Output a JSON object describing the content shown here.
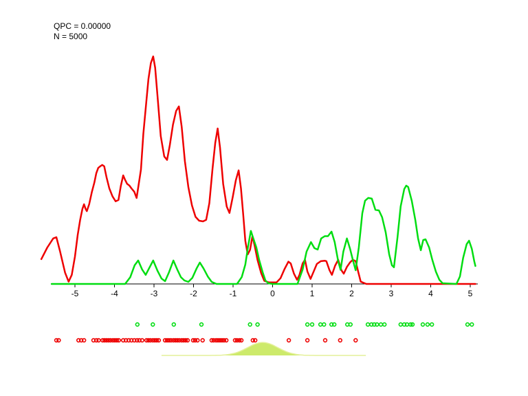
{
  "annotation": {
    "line1": "QPC = 0.00000",
    "line2": "N = 5000"
  },
  "colors": {
    "class1_red": "#ee0000",
    "class2_green": "#00dd11",
    "kernel_fill": "#cdea6b",
    "kernel_line": "#e4f099",
    "axis": "#000000",
    "text": "#000000",
    "background": "#ffffff"
  },
  "chart_data": {
    "type": "line",
    "title": "",
    "xlabel": "",
    "ylabel": "",
    "x_ticks": [
      -5,
      -4,
      -3,
      -2,
      -1,
      0,
      1,
      2,
      3,
      4,
      5
    ],
    "x_range": [
      -5.85,
      5.2
    ],
    "y_normalized": "curve heights are fractions of the tallest red peak",
    "grid": false,
    "legend": "none",
    "series": [
      {
        "name": "class1-red-density",
        "color_key": "class1_red",
        "points": [
          [
            -5.85,
            0.109
          ],
          [
            -5.7,
            0.16
          ],
          [
            -5.55,
            0.2
          ],
          [
            -5.47,
            0.205
          ],
          [
            -5.38,
            0.145
          ],
          [
            -5.25,
            0.05
          ],
          [
            -5.16,
            0.01
          ],
          [
            -5.08,
            0.04
          ],
          [
            -5.0,
            0.12
          ],
          [
            -4.93,
            0.215
          ],
          [
            -4.87,
            0.28
          ],
          [
            -4.81,
            0.33
          ],
          [
            -4.77,
            0.35
          ],
          [
            -4.73,
            0.33
          ],
          [
            -4.7,
            0.32
          ],
          [
            -4.64,
            0.35
          ],
          [
            -4.57,
            0.405
          ],
          [
            -4.51,
            0.445
          ],
          [
            -4.46,
            0.487
          ],
          [
            -4.41,
            0.51
          ],
          [
            -4.36,
            0.517
          ],
          [
            -4.31,
            0.523
          ],
          [
            -4.26,
            0.517
          ],
          [
            -4.2,
            0.468
          ],
          [
            -4.13,
            0.42
          ],
          [
            -4.05,
            0.385
          ],
          [
            -3.97,
            0.363
          ],
          [
            -3.9,
            0.369
          ],
          [
            -3.84,
            0.43
          ],
          [
            -3.78,
            0.477
          ],
          [
            -3.73,
            0.457
          ],
          [
            -3.68,
            0.44
          ],
          [
            -3.62,
            0.432
          ],
          [
            -3.57,
            0.42
          ],
          [
            -3.5,
            0.405
          ],
          [
            -3.44,
            0.378
          ],
          [
            -3.39,
            0.435
          ],
          [
            -3.33,
            0.502
          ],
          [
            -3.27,
            0.66
          ],
          [
            -3.2,
            0.79
          ],
          [
            -3.14,
            0.9
          ],
          [
            -3.08,
            0.97
          ],
          [
            -3.02,
            1.0
          ],
          [
            -2.97,
            0.95
          ],
          [
            -2.9,
            0.8
          ],
          [
            -2.83,
            0.65
          ],
          [
            -2.74,
            0.56
          ],
          [
            -2.67,
            0.545
          ],
          [
            -2.6,
            0.61
          ],
          [
            -2.52,
            0.7
          ],
          [
            -2.44,
            0.76
          ],
          [
            -2.37,
            0.78
          ],
          [
            -2.3,
            0.69
          ],
          [
            -2.22,
            0.54
          ],
          [
            -2.13,
            0.425
          ],
          [
            -2.04,
            0.345
          ],
          [
            -1.95,
            0.295
          ],
          [
            -1.86,
            0.278
          ],
          [
            -1.76,
            0.275
          ],
          [
            -1.68,
            0.282
          ],
          [
            -1.6,
            0.355
          ],
          [
            -1.52,
            0.505
          ],
          [
            -1.45,
            0.62
          ],
          [
            -1.39,
            0.683
          ],
          [
            -1.33,
            0.6
          ],
          [
            -1.25,
            0.44
          ],
          [
            -1.16,
            0.34
          ],
          [
            -1.09,
            0.312
          ],
          [
            -1.01,
            0.38
          ],
          [
            -0.93,
            0.455
          ],
          [
            -0.86,
            0.499
          ],
          [
            -0.8,
            0.42
          ],
          [
            -0.74,
            0.3
          ],
          [
            -0.69,
            0.19
          ],
          [
            -0.63,
            0.13
          ],
          [
            -0.57,
            0.15
          ],
          [
            -0.51,
            0.21
          ],
          [
            -0.45,
            0.165
          ],
          [
            -0.38,
            0.105
          ],
          [
            -0.29,
            0.048
          ],
          [
            -0.21,
            0.014
          ],
          [
            -0.1,
            0.007
          ],
          [
            0.1,
            0.007
          ],
          [
            0.2,
            0.025
          ],
          [
            0.3,
            0.065
          ],
          [
            0.4,
            0.098
          ],
          [
            0.46,
            0.09
          ],
          [
            0.54,
            0.045
          ],
          [
            0.62,
            0.018
          ],
          [
            0.68,
            0.04
          ],
          [
            0.76,
            0.09
          ],
          [
            0.82,
            0.106
          ],
          [
            0.88,
            0.055
          ],
          [
            0.96,
            0.022
          ],
          [
            1.04,
            0.055
          ],
          [
            1.12,
            0.088
          ],
          [
            1.22,
            0.1
          ],
          [
            1.32,
            0.102
          ],
          [
            1.36,
            0.1
          ],
          [
            1.44,
            0.06
          ],
          [
            1.5,
            0.04
          ],
          [
            1.58,
            0.08
          ],
          [
            1.66,
            0.106
          ],
          [
            1.74,
            0.06
          ],
          [
            1.8,
            0.045
          ],
          [
            1.88,
            0.075
          ],
          [
            1.96,
            0.095
          ],
          [
            2.03,
            0.106
          ],
          [
            2.1,
            0.1
          ],
          [
            2.17,
            0.05
          ],
          [
            2.23,
            0.01
          ],
          [
            2.37,
            0.0
          ],
          [
            5.13,
            0.0
          ]
        ]
      },
      {
        "name": "class2-green-density",
        "color_key": "class2_green",
        "points": [
          [
            -5.59,
            0.0
          ],
          [
            -3.73,
            0.0
          ],
          [
            -3.6,
            0.03
          ],
          [
            -3.49,
            0.082
          ],
          [
            -3.4,
            0.103
          ],
          [
            -3.3,
            0.063
          ],
          [
            -3.21,
            0.04
          ],
          [
            -3.12,
            0.07
          ],
          [
            -3.02,
            0.103
          ],
          [
            -2.91,
            0.057
          ],
          [
            -2.81,
            0.024
          ],
          [
            -2.72,
            0.012
          ],
          [
            -2.62,
            0.051
          ],
          [
            -2.51,
            0.103
          ],
          [
            -2.41,
            0.063
          ],
          [
            -2.32,
            0.03
          ],
          [
            -2.23,
            0.015
          ],
          [
            -2.13,
            0.009
          ],
          [
            -2.03,
            0.027
          ],
          [
            -1.92,
            0.069
          ],
          [
            -1.84,
            0.094
          ],
          [
            -1.75,
            0.069
          ],
          [
            -1.64,
            0.033
          ],
          [
            -1.54,
            0.009
          ],
          [
            -1.42,
            0.0
          ],
          [
            -0.9,
            0.0
          ],
          [
            -0.78,
            0.03
          ],
          [
            -0.69,
            0.085
          ],
          [
            -0.62,
            0.166
          ],
          [
            -0.55,
            0.233
          ],
          [
            -0.48,
            0.196
          ],
          [
            -0.41,
            0.16
          ],
          [
            -0.34,
            0.106
          ],
          [
            -0.25,
            0.051
          ],
          [
            -0.18,
            0.015
          ],
          [
            -0.11,
            0.003
          ],
          [
            0.0,
            0.0
          ],
          [
            0.63,
            0.0
          ],
          [
            0.76,
            0.063
          ],
          [
            0.86,
            0.142
          ],
          [
            0.97,
            0.184
          ],
          [
            1.06,
            0.157
          ],
          [
            1.14,
            0.151
          ],
          [
            1.23,
            0.2
          ],
          [
            1.32,
            0.21
          ],
          [
            1.4,
            0.21
          ],
          [
            1.49,
            0.23
          ],
          [
            1.57,
            0.184
          ],
          [
            1.66,
            0.1
          ],
          [
            1.72,
            0.062
          ],
          [
            1.79,
            0.142
          ],
          [
            1.88,
            0.2
          ],
          [
            1.96,
            0.154
          ],
          [
            2.03,
            0.106
          ],
          [
            2.1,
            0.06
          ],
          [
            2.18,
            0.16
          ],
          [
            2.27,
            0.311
          ],
          [
            2.34,
            0.366
          ],
          [
            2.42,
            0.378
          ],
          [
            2.51,
            0.375
          ],
          [
            2.6,
            0.326
          ],
          [
            2.69,
            0.323
          ],
          [
            2.77,
            0.293
          ],
          [
            2.86,
            0.227
          ],
          [
            2.95,
            0.13
          ],
          [
            3.02,
            0.082
          ],
          [
            3.07,
            0.073
          ],
          [
            3.16,
            0.205
          ],
          [
            3.24,
            0.341
          ],
          [
            3.33,
            0.417
          ],
          [
            3.38,
            0.432
          ],
          [
            3.43,
            0.426
          ],
          [
            3.52,
            0.366
          ],
          [
            3.61,
            0.281
          ],
          [
            3.68,
            0.2
          ],
          [
            3.75,
            0.148
          ],
          [
            3.81,
            0.193
          ],
          [
            3.87,
            0.196
          ],
          [
            3.96,
            0.16
          ],
          [
            4.04,
            0.106
          ],
          [
            4.13,
            0.054
          ],
          [
            4.22,
            0.018
          ],
          [
            4.3,
            0.003
          ],
          [
            4.65,
            0.0
          ],
          [
            4.74,
            0.033
          ],
          [
            4.82,
            0.115
          ],
          [
            4.91,
            0.175
          ],
          [
            4.97,
            0.19
          ],
          [
            5.04,
            0.154
          ],
          [
            5.1,
            0.1
          ],
          [
            5.13,
            0.079
          ]
        ]
      }
    ],
    "rug_points": {
      "class2_green_x": [
        -3.42,
        -3.03,
        -2.5,
        -1.8,
        -0.57,
        -0.38,
        0.88,
        1.0,
        1.21,
        1.3,
        1.49,
        1.56,
        1.89,
        1.97,
        2.41,
        2.5,
        2.57,
        2.64,
        2.74,
        2.83,
        3.24,
        3.33,
        3.4,
        3.49,
        3.54,
        3.8,
        3.92,
        4.03,
        4.93,
        5.04
      ],
      "class1_red_x": [
        -5.47,
        -5.41,
        -4.91,
        -4.84,
        -4.77,
        -4.53,
        -4.46,
        -4.4,
        -4.3,
        -4.25,
        -4.2,
        -4.15,
        -4.1,
        -4.04,
        -3.99,
        -3.94,
        -3.89,
        -3.78,
        -3.71,
        -3.64,
        -3.57,
        -3.5,
        -3.43,
        -3.37,
        -3.3,
        -3.19,
        -3.14,
        -3.09,
        -3.03,
        -2.98,
        -2.93,
        -2.88,
        -2.72,
        -2.67,
        -2.62,
        -2.57,
        -2.51,
        -2.46,
        -2.41,
        -2.36,
        -2.3,
        -2.25,
        -2.2,
        -2.15,
        -2.01,
        -1.96,
        -1.9,
        -1.77,
        -1.54,
        -1.49,
        -1.43,
        -1.38,
        -1.33,
        -1.28,
        -1.23,
        -1.17,
        -0.95,
        -0.9,
        -0.84,
        -0.79,
        -0.5,
        -0.44,
        0.41,
        0.88,
        1.33,
        1.71,
        2.1
      ]
    },
    "kernel_window": {
      "center": -0.25,
      "sigma": 0.38,
      "height": 0.057,
      "x_start": -2.81,
      "x_end": 2.36
    }
  }
}
